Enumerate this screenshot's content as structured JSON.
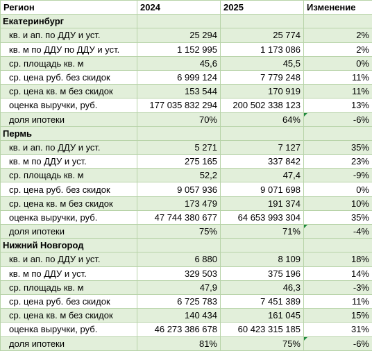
{
  "header": [
    "Регион",
    "2024",
    "2025",
    "Изменение"
  ],
  "groups": [
    {
      "name": "Екатеринбург",
      "rows": [
        [
          "кв. и ап. по ДДУ и уст.",
          "25 294",
          "25 774",
          "2%"
        ],
        [
          "кв. м по ДДУ по ДДУ и уст.",
          "1 152 995",
          "1 173 086",
          "2%"
        ],
        [
          "ср. площадь кв. м",
          "45,6",
          "45,5",
          "0%"
        ],
        [
          "ср. цена руб. без скидок",
          "6 999 124",
          "7 779 248",
          "11%"
        ],
        [
          "ср. цена кв. м без скидок",
          "153 544",
          "170 919",
          "11%"
        ],
        [
          "оценка выручки, руб.",
          "177 035 832 294",
          "200 502 338 123",
          "13%"
        ],
        [
          "доля ипотеки",
          "70%",
          "64%",
          "-6%"
        ]
      ]
    },
    {
      "name": "Пермь",
      "rows": [
        [
          "кв. и ап. по ДДУ и уст.",
          "5 271",
          "7 127",
          "35%"
        ],
        [
          "кв. м по ДДУ и уст.",
          "275 165",
          "337 842",
          "23%"
        ],
        [
          "ср. площадь кв. м",
          "52,2",
          "47,4",
          "-9%"
        ],
        [
          "ср. цена руб. без скидок",
          "9 057 936",
          "9 071 698",
          "0%"
        ],
        [
          "ср. цена кв. м без скидок",
          "173 479",
          "191 374",
          "10%"
        ],
        [
          "оценка выручки, руб.",
          "47 744 380 677",
          "64 653 993 304",
          "35%"
        ],
        [
          "доля ипотеки",
          "75%",
          "71%",
          "-4%"
        ]
      ]
    },
    {
      "name": "Нижний Новгород",
      "rows": [
        [
          "кв. и ап. по ДДУ и уст.",
          "6 880",
          "8 109",
          "18%"
        ],
        [
          "кв. м по ДДУ и уст.",
          "329 503",
          "375 196",
          "14%"
        ],
        [
          "ср. площадь кв. м",
          "47,9",
          "46,3",
          "-3%"
        ],
        [
          "ср. цена руб. без скидок",
          "6 725 783",
          "7 451 389",
          "11%"
        ],
        [
          "ср. цена кв. м без скидок",
          "140 434",
          "161 045",
          "15%"
        ],
        [
          "оценка выручки, руб.",
          "46 273 386 678",
          "60 423 315 185",
          "31%"
        ],
        [
          "доля ипотеки",
          "81%",
          "75%",
          "-6%"
        ]
      ]
    }
  ],
  "colors": {
    "band": "#e2efda",
    "grid": "#b7d3a8",
    "flag": "#1e8a3c"
  }
}
